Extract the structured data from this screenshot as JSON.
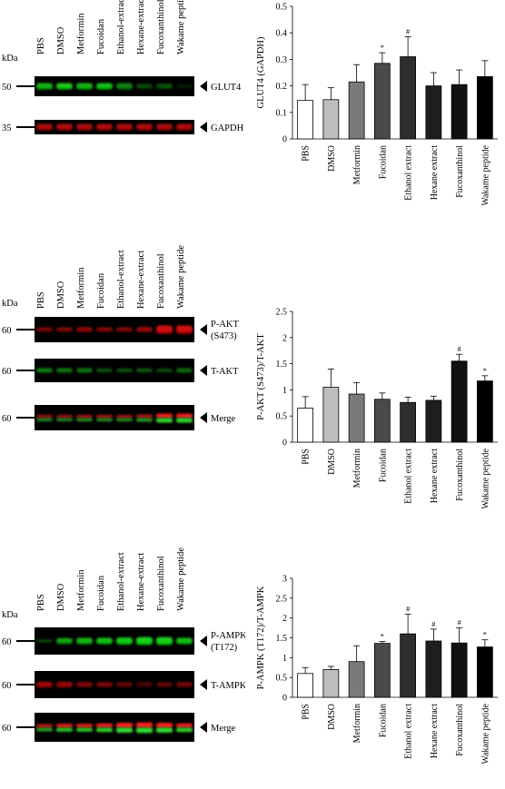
{
  "lanes": [
    "PBS",
    "DMSO",
    "Metformin",
    "Fucoidan",
    "Ethanol-extract",
    "Hexane-extract",
    "Fucoxanthinol",
    "Wakame peptide"
  ],
  "kda_label": "kDa",
  "blots": [
    {
      "id": "A",
      "strips": [
        {
          "kda": "50",
          "label": [
            "GLUT4"
          ],
          "channel": "green",
          "intensity": [
            0.85,
            0.95,
            0.85,
            0.9,
            0.6,
            0.35,
            0.4,
            0.15
          ],
          "thickness": [
            1,
            1,
            1,
            1,
            1,
            0.8,
            0.8,
            0.6
          ]
        },
        {
          "kda": "35",
          "label": [
            "GAPDH"
          ],
          "channel": "red",
          "intensity": [
            0.8,
            0.8,
            0.8,
            0.8,
            0.8,
            0.8,
            0.8,
            0.8
          ],
          "thickness": [
            1,
            1,
            1,
            1,
            1,
            1,
            1,
            1
          ]
        }
      ]
    },
    {
      "id": "B",
      "strips": [
        {
          "kda": "60",
          "label": [
            "P-AKT",
            "(S473)"
          ],
          "channel": "red",
          "intensity": [
            0.55,
            0.6,
            0.65,
            0.6,
            0.6,
            0.7,
            0.95,
            0.95
          ],
          "thickness": [
            0.7,
            0.7,
            0.8,
            0.7,
            0.7,
            0.8,
            1.3,
            1.3
          ]
        },
        {
          "kda": "60",
          "label": [
            "T-AKT"
          ],
          "channel": "green",
          "intensity": [
            0.6,
            0.55,
            0.55,
            0.4,
            0.4,
            0.45,
            0.35,
            0.5
          ],
          "thickness": [
            0.7,
            0.7,
            0.7,
            0.6,
            0.6,
            0.6,
            0.6,
            0.7
          ]
        },
        {
          "kda": "60",
          "label": [
            "Merge"
          ],
          "channel": "merge",
          "intensity": [
            0.6,
            0.6,
            0.65,
            0.65,
            0.65,
            0.7,
            0.95,
            0.95
          ],
          "thickness": [
            0.9,
            0.9,
            0.9,
            0.9,
            0.9,
            1,
            1.3,
            1.3
          ]
        }
      ]
    },
    {
      "id": "C",
      "strips": [
        {
          "kda": "60",
          "label": [
            "P-AMPK",
            "(T172)"
          ],
          "channel": "green",
          "intensity": [
            0.35,
            0.8,
            0.85,
            0.9,
            0.95,
            1,
            1,
            0.9
          ],
          "thickness": [
            0.5,
            0.9,
            1,
            1,
            1.1,
            1.2,
            1.2,
            1
          ]
        },
        {
          "kda": "60",
          "label": [
            "T-AMPK"
          ],
          "channel": "red",
          "intensity": [
            0.75,
            0.7,
            0.6,
            0.6,
            0.45,
            0.35,
            0.45,
            0.55
          ],
          "thickness": [
            0.9,
            0.9,
            0.8,
            0.8,
            0.8,
            0.7,
            0.7,
            0.8
          ]
        },
        {
          "kda": "60",
          "label": [
            "Merge"
          ],
          "channel": "merge",
          "intensity": [
            0.75,
            0.9,
            0.9,
            0.95,
            1,
            1,
            1,
            0.95
          ],
          "thickness": [
            1,
            1.1,
            1.1,
            1.2,
            1.4,
            1.5,
            1.4,
            1.2
          ]
        }
      ]
    }
  ],
  "chart_data": [
    {
      "type": "bar",
      "categories": [
        "PBS",
        "DMSO",
        "Metformin",
        "Fucoidan",
        "Ethanol extract",
        "Hexane extract",
        "Fucoxanthinol",
        "Wakame peptide"
      ],
      "values": [
        0.145,
        0.148,
        0.215,
        0.285,
        0.31,
        0.2,
        0.205,
        0.235
      ],
      "errors": [
        0.06,
        0.045,
        0.065,
        0.04,
        0.075,
        0.05,
        0.055,
        0.06
      ],
      "annotations": [
        "",
        "",
        "",
        "*",
        "#",
        "",
        "",
        ""
      ],
      "colors": [
        "#ffffff",
        "#bdbdbd",
        "#7a7a7a",
        "#4a4a4a",
        "#2e2e2e",
        "#1e1e1e",
        "#111111",
        "#000000"
      ],
      "ylabel": "GLUT4 (GAPDH)",
      "ylim": [
        0,
        0.5
      ],
      "yticks": [
        "0",
        "0.1",
        "0.2",
        "0.3",
        "0.4",
        "0.5"
      ],
      "ytick_values": [
        0,
        0.1,
        0.2,
        0.3,
        0.4,
        0.5
      ]
    },
    {
      "type": "bar",
      "categories": [
        "PBS",
        "DMSO",
        "Metformin",
        "Fucoidan",
        "Ethanol extract",
        "Hexane extract",
        "Fucoxanthinol",
        "Wakame peptide"
      ],
      "values": [
        0.65,
        1.05,
        0.92,
        0.82,
        0.76,
        0.8,
        1.55,
        1.17
      ],
      "errors": [
        0.22,
        0.35,
        0.22,
        0.12,
        0.1,
        0.08,
        0.13,
        0.1
      ],
      "annotations": [
        "",
        "",
        "",
        "",
        "",
        "",
        "#",
        "*"
      ],
      "colors": [
        "#ffffff",
        "#bdbdbd",
        "#7a7a7a",
        "#4a4a4a",
        "#2e2e2e",
        "#1e1e1e",
        "#111111",
        "#000000"
      ],
      "ylabel": "P-AKT (S473)/T-AKT",
      "ylim": [
        0,
        2.5
      ],
      "yticks": [
        "0",
        "0.5",
        "1",
        "1.5",
        "2",
        "2.5"
      ],
      "ytick_values": [
        0,
        0.5,
        1,
        1.5,
        2,
        2.5
      ]
    },
    {
      "type": "bar",
      "categories": [
        "PBS",
        "DMSO",
        "Metformin",
        "Fucoidan",
        "Ethanol extract",
        "Hexane extract",
        "Fucoxanthinol",
        "Wakame peptide"
      ],
      "values": [
        0.6,
        0.7,
        0.9,
        1.36,
        1.6,
        1.42,
        1.37,
        1.27
      ],
      "errors": [
        0.15,
        0.08,
        0.4,
        0.05,
        0.5,
        0.3,
        0.38,
        0.18
      ],
      "annotations": [
        "",
        "",
        "",
        "*",
        "#",
        "#",
        "#",
        "*"
      ],
      "colors": [
        "#ffffff",
        "#bdbdbd",
        "#7a7a7a",
        "#4a4a4a",
        "#2e2e2e",
        "#1e1e1e",
        "#111111",
        "#000000"
      ],
      "ylabel": "P-AMPK (T172)/T-AMPK",
      "ylim": [
        0,
        3
      ],
      "yticks": [
        "0",
        "0.5",
        "1",
        "1.5",
        "2",
        "2.5",
        "3"
      ],
      "ytick_values": [
        0,
        0.5,
        1,
        1.5,
        2,
        2.5,
        3
      ]
    }
  ]
}
